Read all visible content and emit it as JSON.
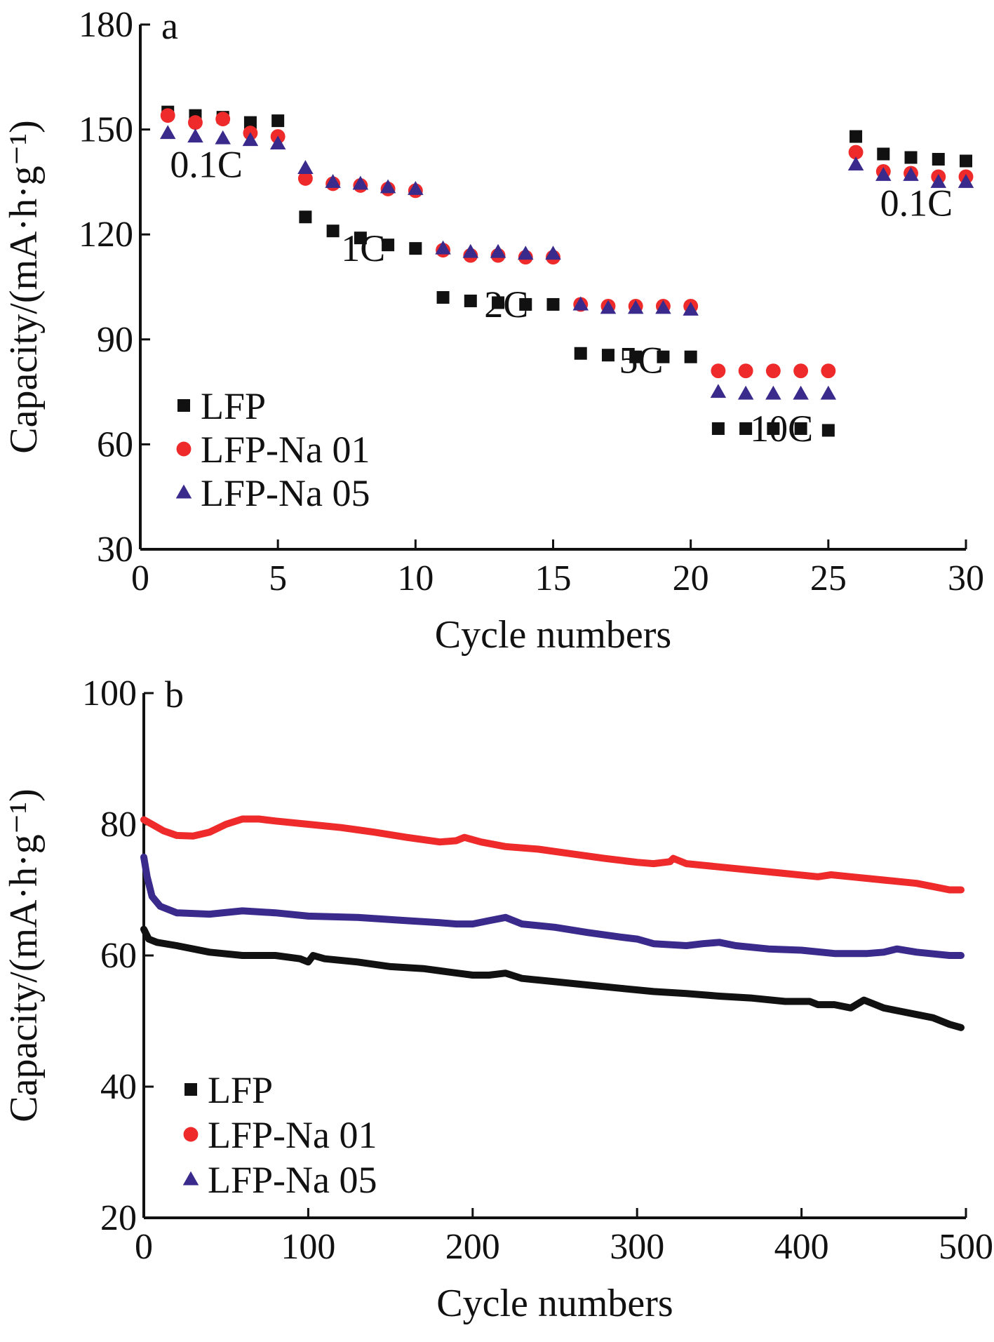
{
  "colors": {
    "LFP": "#111111",
    "LFP-Na 01": "#ee2a2a",
    "LFP-Na 05": "#3a2a8c",
    "axis": "#111111"
  },
  "chart_data": [
    {
      "id": "a",
      "type": "scatter",
      "panel_label": "a",
      "xlabel": "Cycle numbers",
      "ylabel": "Capacity/(mA·h·g⁻¹)",
      "xlim": [
        0,
        30
      ],
      "ylim": [
        30,
        180
      ],
      "xticks": [
        0,
        5,
        10,
        15,
        20,
        25,
        30
      ],
      "yticks": [
        30,
        60,
        90,
        120,
        150,
        180
      ],
      "legend_position": "lower-left",
      "series": [
        {
          "name": "LFP",
          "marker": "square",
          "color": "#111111",
          "x": [
            1,
            2,
            3,
            4,
            5,
            6,
            7,
            8,
            9,
            10,
            11,
            12,
            13,
            14,
            15,
            16,
            17,
            18,
            19,
            20,
            21,
            22,
            23,
            24,
            25,
            26,
            27,
            28,
            29,
            30
          ],
          "y": [
            155,
            154,
            153.5,
            152,
            152.5,
            125,
            121,
            119,
            117,
            116,
            102,
            101,
            100.5,
            100,
            100,
            86,
            85.5,
            85,
            85,
            85,
            64.5,
            64.5,
            64.5,
            64.5,
            64,
            148,
            143,
            142,
            141.5,
            141
          ]
        },
        {
          "name": "LFP-Na 01",
          "marker": "circle",
          "color": "#ee2a2a",
          "x": [
            1,
            2,
            3,
            4,
            5,
            6,
            7,
            8,
            9,
            10,
            11,
            12,
            13,
            14,
            15,
            16,
            17,
            18,
            19,
            20,
            21,
            22,
            23,
            24,
            25,
            26,
            27,
            28,
            29,
            30
          ],
          "y": [
            154,
            152,
            153,
            149,
            148,
            136,
            134.5,
            134,
            133,
            132.5,
            115.5,
            114,
            114,
            113.5,
            113.5,
            100,
            99.5,
            99.5,
            99.5,
            99.5,
            81,
            81,
            81,
            81,
            81,
            143.5,
            138,
            137.5,
            136.5,
            136.5
          ]
        },
        {
          "name": "LFP-Na 05",
          "marker": "triangle",
          "color": "#3a2a8c",
          "x": [
            1,
            2,
            3,
            4,
            5,
            6,
            7,
            8,
            9,
            10,
            11,
            12,
            13,
            14,
            15,
            16,
            17,
            18,
            19,
            20,
            21,
            22,
            23,
            24,
            25,
            26,
            27,
            28,
            29,
            30
          ],
          "y": [
            149,
            148,
            147.5,
            147,
            146,
            139,
            135,
            134.5,
            133.5,
            133,
            116,
            115,
            115,
            114.5,
            114.5,
            100,
            99,
            99,
            99,
            98.5,
            75,
            74.5,
            74.5,
            74.5,
            74.5,
            140,
            137,
            137,
            135,
            135
          ]
        }
      ],
      "annotations": [
        {
          "text": "0.1C",
          "x": 2.4,
          "y": 140
        },
        {
          "text": "1C",
          "x": 8.1,
          "y": 116
        },
        {
          "text": "2C",
          "x": 13.3,
          "y": 100
        },
        {
          "text": "5C",
          "x": 18.2,
          "y": 84
        },
        {
          "text": "10C",
          "x": 23.3,
          "y": 64.5
        },
        {
          "text": "0.1C",
          "x": 28.2,
          "y": 129
        }
      ]
    },
    {
      "id": "b",
      "type": "line",
      "panel_label": "b",
      "xlabel": "Cycle numbers",
      "ylabel": "Capacity/(mA·h·g⁻¹)",
      "xlim": [
        0,
        500
      ],
      "ylim": [
        20,
        100
      ],
      "xticks": [
        0,
        100,
        200,
        300,
        400,
        500
      ],
      "yticks": [
        20,
        40,
        60,
        80,
        100
      ],
      "legend_position": "lower-left",
      "series": [
        {
          "name": "LFP",
          "marker": "square",
          "color": "#111111",
          "x": [
            0,
            3,
            8,
            20,
            40,
            60,
            80,
            95,
            100,
            103,
            110,
            130,
            150,
            170,
            185,
            200,
            210,
            220,
            230,
            250,
            270,
            290,
            310,
            330,
            350,
            370,
            390,
            405,
            410,
            420,
            430,
            438,
            445,
            450,
            460,
            470,
            480,
            490,
            497
          ],
          "y": [
            64,
            62.5,
            62,
            61.5,
            60.5,
            60,
            60,
            59.5,
            59,
            60,
            59.5,
            59,
            58.3,
            58,
            57.5,
            57,
            57,
            57.3,
            56.5,
            56,
            55.5,
            55,
            54.5,
            54.2,
            53.8,
            53.5,
            53,
            53,
            52.5,
            52.5,
            52,
            53.2,
            52.5,
            52,
            51.5,
            51,
            50.5,
            49.5,
            49
          ]
        },
        {
          "name": "LFP-Na 01",
          "marker": "circle",
          "color": "#ee2a2a",
          "x": [
            0,
            5,
            12,
            20,
            30,
            40,
            50,
            60,
            70,
            80,
            100,
            120,
            140,
            160,
            180,
            190,
            195,
            205,
            220,
            240,
            260,
            280,
            300,
            310,
            320,
            322,
            330,
            350,
            370,
            390,
            410,
            418,
            430,
            450,
            470,
            480,
            490,
            497
          ],
          "y": [
            80.7,
            80,
            79,
            78.3,
            78.2,
            78.8,
            80,
            80.8,
            80.8,
            80.5,
            80,
            79.5,
            78.8,
            78,
            77.3,
            77.5,
            78,
            77.3,
            76.6,
            76.2,
            75.5,
            74.8,
            74.2,
            74,
            74.3,
            74.8,
            74,
            73.5,
            73,
            72.5,
            72,
            72.3,
            72,
            71.5,
            71,
            70.5,
            70,
            70
          ]
        },
        {
          "name": "LFP-Na 05",
          "marker": "triangle",
          "color": "#3a2a8c",
          "x": [
            0,
            2,
            5,
            10,
            20,
            40,
            60,
            80,
            100,
            130,
            160,
            180,
            190,
            200,
            210,
            220,
            230,
            250,
            270,
            290,
            300,
            310,
            330,
            340,
            350,
            360,
            380,
            400,
            420,
            440,
            450,
            458,
            470,
            490,
            497
          ],
          "y": [
            75,
            72,
            69,
            67.5,
            66.5,
            66.3,
            66.8,
            66.5,
            66,
            65.8,
            65.3,
            65,
            64.8,
            64.8,
            65.3,
            65.8,
            64.8,
            64.3,
            63.5,
            62.8,
            62.5,
            61.8,
            61.5,
            61.8,
            62,
            61.5,
            61,
            60.8,
            60.3,
            60.3,
            60.5,
            61,
            60.5,
            60,
            60
          ]
        }
      ]
    }
  ]
}
